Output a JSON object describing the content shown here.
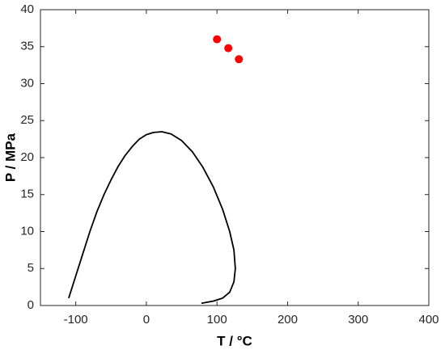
{
  "chart_data": {
    "type": "line",
    "xlabel": "T / °C",
    "ylabel": "P / MPa",
    "xlim": [
      -150,
      400
    ],
    "xticks": [
      -100,
      0,
      100,
      200,
      300,
      400
    ],
    "ylim": [
      0,
      40
    ],
    "yticks": [
      0,
      5,
      10,
      15,
      20,
      25,
      30,
      35,
      40
    ],
    "series": [
      {
        "color": "#000000",
        "x": [
          -110,
          -100,
          -90,
          -80,
          -70,
          -60,
          -50,
          -40,
          -30,
          -20,
          -10,
          0,
          10,
          22,
          35,
          50,
          65,
          80,
          95,
          108,
          118,
          124,
          126,
          124,
          118,
          108,
          95,
          78
        ],
        "values": [
          1,
          4,
          7,
          10,
          12.7,
          15,
          17,
          18.8,
          20.3,
          21.5,
          22.5,
          23.1,
          23.4,
          23.5,
          23.2,
          22.3,
          20.8,
          18.7,
          16,
          13,
          10,
          7.5,
          5,
          3.2,
          1.8,
          1,
          0.6,
          0.3
        ]
      },
      {
        "color": "#ff0000",
        "marker": "circle",
        "x": [
          100,
          116,
          131
        ],
        "values": [
          36,
          34.8,
          33.3
        ]
      }
    ]
  }
}
